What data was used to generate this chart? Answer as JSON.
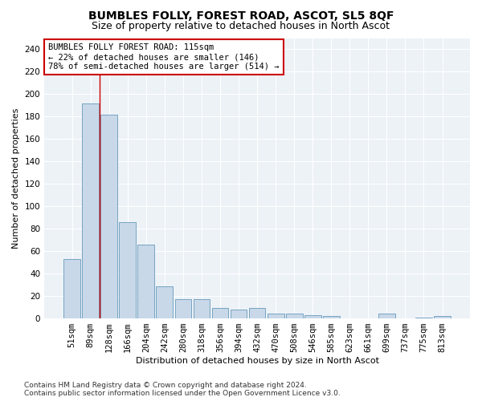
{
  "title": "BUMBLES FOLLY, FOREST ROAD, ASCOT, SL5 8QF",
  "subtitle": "Size of property relative to detached houses in North Ascot",
  "xlabel": "Distribution of detached houses by size in North Ascot",
  "ylabel": "Number of detached properties",
  "categories": [
    "51sqm",
    "89sqm",
    "128sqm",
    "166sqm",
    "204sqm",
    "242sqm",
    "280sqm",
    "318sqm",
    "356sqm",
    "394sqm",
    "432sqm",
    "470sqm",
    "508sqm",
    "546sqm",
    "585sqm",
    "623sqm",
    "661sqm",
    "699sqm",
    "737sqm",
    "775sqm",
    "813sqm"
  ],
  "values": [
    53,
    192,
    182,
    86,
    66,
    29,
    17,
    17,
    9,
    8,
    9,
    4,
    4,
    3,
    2,
    0,
    0,
    4,
    0,
    1,
    2
  ],
  "bar_color": "#c8d8e8",
  "bar_edge_color": "#6699bb",
  "vline_x_idx": 1.5,
  "vline_color": "#cc0000",
  "annotation_text": "BUMBLES FOLLY FOREST ROAD: 115sqm\n← 22% of detached houses are smaller (146)\n78% of semi-detached houses are larger (514) →",
  "annotation_box_color": "#ffffff",
  "annotation_box_edge_color": "#cc0000",
  "annotation_fontsize": 7.5,
  "ylim": [
    0,
    250
  ],
  "yticks": [
    0,
    20,
    40,
    60,
    80,
    100,
    120,
    140,
    160,
    180,
    200,
    220,
    240
  ],
  "plot_bg_color": "#edf2f7",
  "footer": "Contains HM Land Registry data © Crown copyright and database right 2024.\nContains public sector information licensed under the Open Government Licence v3.0.",
  "title_fontsize": 10,
  "subtitle_fontsize": 9,
  "xlabel_fontsize": 8,
  "ylabel_fontsize": 8,
  "tick_fontsize": 7.5,
  "footer_fontsize": 6.5
}
